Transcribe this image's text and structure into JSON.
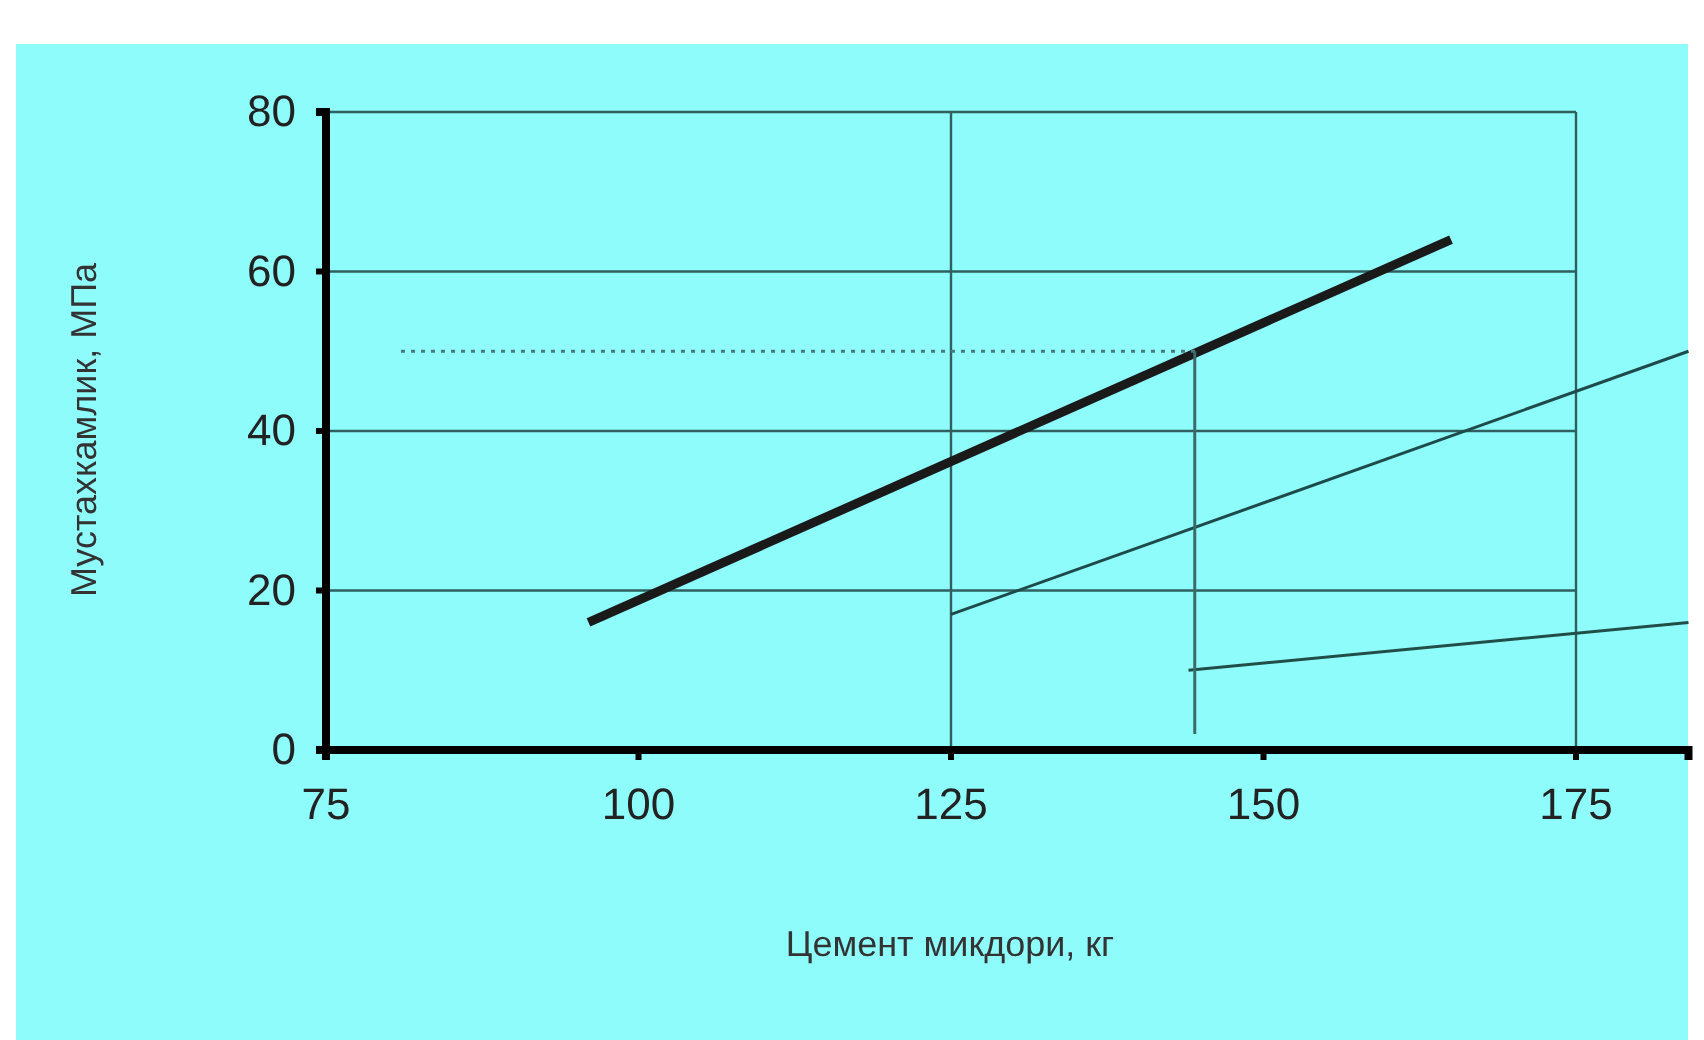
{
  "chart_data": {
    "type": "line",
    "xlabel": "Цемент микдори, кг",
    "ylabel": "Мустахкамлик, МПа",
    "xlim": [
      75,
      184
    ],
    "ylim": [
      0,
      80
    ],
    "xticks": [
      75,
      100,
      125,
      150,
      175
    ],
    "yticks": [
      0,
      20,
      40,
      60,
      80
    ],
    "ref_lines": [
      {
        "axis": "x",
        "value": 125,
        "color": "#2f5f5f"
      },
      {
        "axis": "x",
        "value": 175,
        "color": "#2f5f5f"
      },
      {
        "axis": "y",
        "value": 20,
        "color": "#2f5f5f"
      },
      {
        "axis": "y",
        "value": 40,
        "color": "#2f5f5f"
      },
      {
        "axis": "y",
        "value": 60,
        "color": "#2f5f5f"
      },
      {
        "axis": "y",
        "value": 80,
        "color": "#2f5f5f"
      }
    ],
    "series": [
      {
        "color": "#1a1a1a",
        "x": [
          96,
          165
        ],
        "values": [
          16,
          64
        ]
      },
      {
        "color": "#1e4a4a",
        "x": [
          125,
          184
        ],
        "values": [
          17,
          50
        ]
      },
      {
        "color": "#224e48",
        "x": [
          144,
          184
        ],
        "values": [
          10,
          16
        ]
      },
      {
        "color": "#4a7a7a",
        "x": [
          81,
          145
        ],
        "values": [
          50,
          50
        ],
        "line_style": "dotted"
      },
      {
        "color": "#3a6a6a",
        "x": [
          144.5,
          144.5
        ],
        "values": [
          50,
          2
        ]
      }
    ]
  }
}
